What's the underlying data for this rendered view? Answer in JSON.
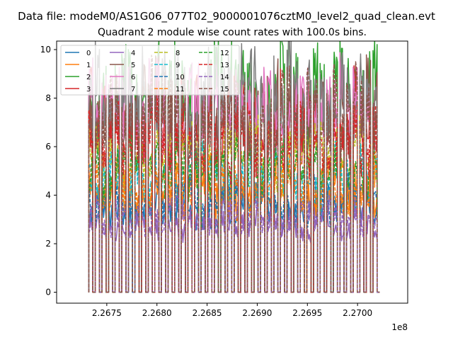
{
  "figure": {
    "suptitle": "Data file: modeM0/AS1G06_077T02_9000001076cztM0_level2_quad_clean.evt",
    "title": "Quadrant 2 module wise count rates with 100.0s bins."
  },
  "chart_data": {
    "type": "line",
    "title": "Quadrant 2 module wise count rates with 100.0s bins.",
    "xlabel": "",
    "ylabel": "",
    "x_offset_label": "1e8",
    "xlim": [
      2.267,
      2.2705
    ],
    "ylim": [
      -0.45,
      10.35
    ],
    "x_scale_factor": 100000000,
    "x_ticks": [
      2.2675,
      2.268,
      2.2685,
      2.269,
      2.2695,
      2.27
    ],
    "x_tick_labels": [
      "2.2675",
      "2.2680",
      "2.2685",
      "2.2690",
      "2.2695",
      "2.2700"
    ],
    "y_ticks": [
      0,
      2,
      4,
      6,
      8,
      10
    ],
    "y_tick_labels": [
      "0",
      "2",
      "4",
      "6",
      "8",
      "10"
    ],
    "x_range": [
      2.26732,
      2.27022
    ],
    "orbits": 44,
    "grid": false,
    "legend": {
      "placement": "top-left",
      "columns": 4
    },
    "series": [
      {
        "name": "0",
        "color": "#1f77b4",
        "style": "solid",
        "level": 3.5
      },
      {
        "name": "1",
        "color": "#ff7f0e",
        "style": "solid",
        "level": 4.3
      },
      {
        "name": "2",
        "color": "#2ca02c",
        "style": "solid",
        "level": 8.3
      },
      {
        "name": "3",
        "color": "#d62728",
        "style": "solid",
        "level": 7.2
      },
      {
        "name": "4",
        "color": "#9467bd",
        "style": "solid",
        "level": 2.8
      },
      {
        "name": "5",
        "color": "#8c564b",
        "style": "solid",
        "level": 7.7
      },
      {
        "name": "6",
        "color": "#e377c2",
        "style": "solid",
        "level": 7.6
      },
      {
        "name": "7",
        "color": "#7f7f7f",
        "style": "solid",
        "level": 8.0
      },
      {
        "name": "8",
        "color": "#bcbd22",
        "style": "dashed",
        "level": 5.6
      },
      {
        "name": "9",
        "color": "#17becf",
        "style": "dashed",
        "level": 4.9
      },
      {
        "name": "10",
        "color": "#1f77b4",
        "style": "dashed",
        "level": 3.8
      },
      {
        "name": "11",
        "color": "#ff7f0e",
        "style": "dashed",
        "level": 4.5
      },
      {
        "name": "12",
        "color": "#2ca02c",
        "style": "dashed",
        "level": 5.2
      },
      {
        "name": "13",
        "color": "#d62728",
        "style": "dashed",
        "level": 6.2
      },
      {
        "name": "14",
        "color": "#9467bd",
        "style": "dashed",
        "level": 3.1
      },
      {
        "name": "15",
        "color": "#8c564b",
        "style": "dashed",
        "level": 7.4
      }
    ]
  }
}
